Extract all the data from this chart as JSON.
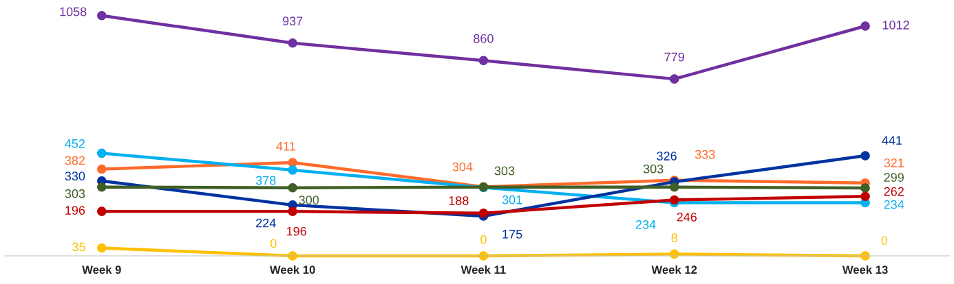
{
  "chart_data": {
    "type": "line",
    "categories": [
      "Week 9",
      "Week 10",
      "Week 11",
      "Week 12",
      "Week 13"
    ],
    "series": [
      {
        "color": "#7030a0",
        "values": [
          1058,
          937,
          860,
          779,
          1012
        ]
      },
      {
        "color": "#ff6b2b",
        "values": [
          382,
          411,
          304,
          333,
          321
        ]
      },
      {
        "color": "#00b0f0",
        "values": [
          452,
          378,
          301,
          234,
          234
        ]
      },
      {
        "color": "#0033a0",
        "values": [
          330,
          224,
          175,
          326,
          441
        ]
      },
      {
        "color": "#3f5f26",
        "values": [
          303,
          300,
          303,
          303,
          299
        ]
      },
      {
        "color": "#c00000",
        "values": [
          196,
          196,
          188,
          246,
          262
        ]
      },
      {
        "color": "#ffc000",
        "values": [
          35,
          0,
          0,
          8,
          0
        ]
      }
    ],
    "marker": "circle",
    "data_labels": true,
    "grid": false,
    "legend": false
  }
}
